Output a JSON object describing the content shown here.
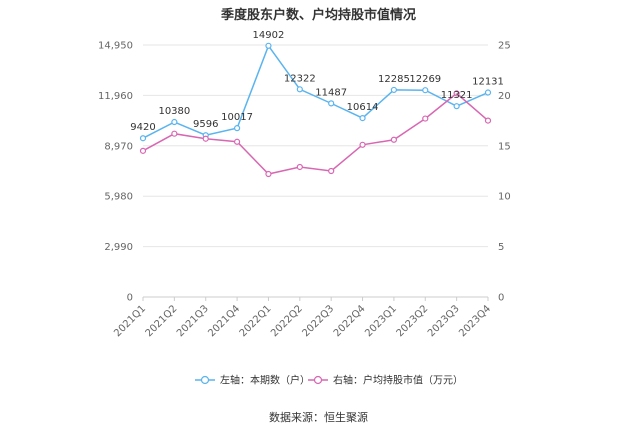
{
  "title": "季度股东户数、户均持股市值情况",
  "source": "数据来源：恒生聚源",
  "chart_data": {
    "type": "line",
    "categories": [
      "2021Q1",
      "2021Q2",
      "2021Q3",
      "2021Q4",
      "2022Q1",
      "2022Q2",
      "2022Q3",
      "2022Q4",
      "2023Q1",
      "2023Q2",
      "2023Q3",
      "2023Q4"
    ],
    "series": [
      {
        "name": "左轴：本期数（户）",
        "axis": "left",
        "color": "#5ab4ef",
        "values": [
          9420,
          10380,
          9596,
          10017,
          14902,
          12322,
          11487,
          10614,
          12285,
          12269,
          11321,
          12131
        ],
        "labels": [
          "9420",
          "10380",
          "9596",
          "10017",
          "14902",
          "12322",
          "11487",
          "10614",
          "12285",
          "12269",
          "11321",
          "12131"
        ]
      },
      {
        "name": "右轴：户均持股市值（万元）",
        "axis": "right",
        "color": "#d867b2",
        "values": [
          14.5,
          16.2,
          15.7,
          15.4,
          12.2,
          12.9,
          12.5,
          15.1,
          15.6,
          17.7,
          20.2,
          17.5
        ]
      }
    ],
    "left_axis": {
      "ticks": [
        "0",
        "2,990",
        "5,980",
        "8,970",
        "11,960",
        "14,950"
      ],
      "ylim": [
        0,
        14950
      ]
    },
    "right_axis": {
      "ticks": [
        "0",
        "5",
        "10",
        "15",
        "20",
        "25"
      ],
      "ylim": [
        0,
        25
      ]
    },
    "grid": true,
    "legend_position": "bottom"
  }
}
